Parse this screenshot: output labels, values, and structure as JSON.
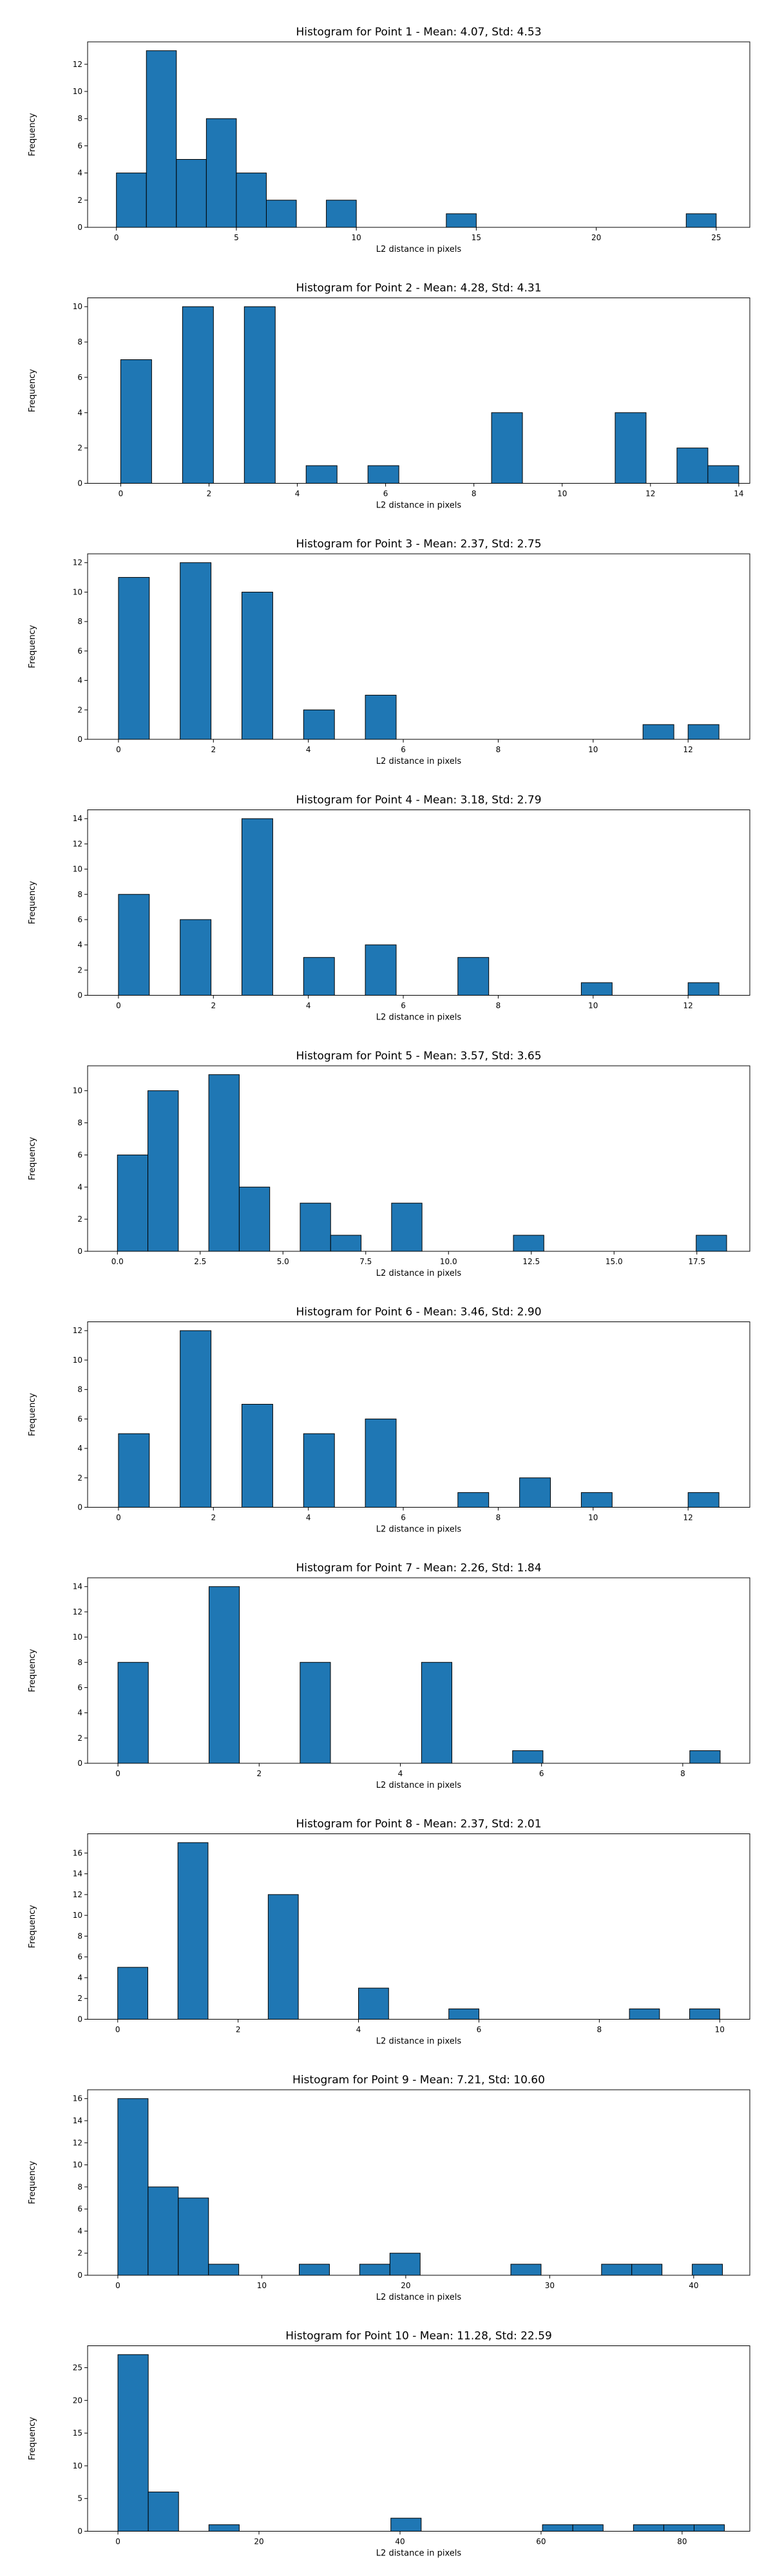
{
  "colors": {
    "bar": "#1f77b4",
    "edge": "#000000",
    "background": "#ffffff"
  },
  "chart_data": [
    {
      "type": "bar",
      "title": "Histogram for Point 1 - Mean: 4.07, Std: 4.53",
      "xlabel": "L2 distance in pixels",
      "ylabel": "Frequency",
      "xlim": [
        -1.2,
        26.4
      ],
      "ylim": [
        0,
        13.65
      ],
      "xticks": [
        0,
        5,
        10,
        15,
        20,
        25
      ],
      "xtick_labels": [
        "0",
        "5",
        "10",
        "15",
        "20",
        "25"
      ],
      "yticks": [
        0,
        2,
        4,
        6,
        8,
        10,
        12
      ],
      "bins": [
        {
          "x0": 0.0,
          "x1": 1.25,
          "count": 4
        },
        {
          "x0": 1.25,
          "x1": 2.5,
          "count": 13
        },
        {
          "x0": 2.5,
          "x1": 3.75,
          "count": 5
        },
        {
          "x0": 3.75,
          "x1": 5.0,
          "count": 8
        },
        {
          "x0": 5.0,
          "x1": 6.25,
          "count": 4
        },
        {
          "x0": 6.25,
          "x1": 7.5,
          "count": 2
        },
        {
          "x0": 8.75,
          "x1": 10.0,
          "count": 2
        },
        {
          "x0": 13.75,
          "x1": 15.0,
          "count": 1
        },
        {
          "x0": 23.75,
          "x1": 25.0,
          "count": 1
        }
      ]
    },
    {
      "type": "bar",
      "title": "Histogram for Point 2 - Mean: 4.28, Std: 4.31",
      "xlabel": "L2 distance in pixels",
      "ylabel": "Frequency",
      "xlim": [
        -0.75,
        14.25
      ],
      "ylim": [
        0,
        10.5
      ],
      "xticks": [
        0,
        2,
        4,
        6,
        8,
        10,
        12,
        14
      ],
      "xtick_labels": [
        "0",
        "2",
        "4",
        "6",
        "8",
        "10",
        "12",
        "14"
      ],
      "yticks": [
        0,
        2,
        4,
        6,
        8,
        10
      ],
      "bins": [
        {
          "x0": 0.0,
          "x1": 0.7,
          "count": 7
        },
        {
          "x0": 1.4,
          "x1": 2.1,
          "count": 10
        },
        {
          "x0": 2.8,
          "x1": 3.5,
          "count": 10
        },
        {
          "x0": 4.2,
          "x1": 4.9,
          "count": 1
        },
        {
          "x0": 5.6,
          "x1": 6.3,
          "count": 1
        },
        {
          "x0": 8.4,
          "x1": 9.1,
          "count": 4
        },
        {
          "x0": 11.2,
          "x1": 11.9,
          "count": 4
        },
        {
          "x0": 12.6,
          "x1": 13.3,
          "count": 2
        },
        {
          "x0": 13.3,
          "x1": 14.0,
          "count": 1
        }
      ]
    },
    {
      "type": "bar",
      "title": "Histogram for Point 3 - Mean: 2.37, Std: 2.75",
      "xlabel": "L2 distance in pixels",
      "ylabel": "Frequency",
      "xlim": [
        -0.65,
        13.3
      ],
      "ylim": [
        0,
        12.6
      ],
      "xticks": [
        0,
        2,
        4,
        6,
        8,
        10,
        12
      ],
      "xtick_labels": [
        "0",
        "2",
        "4",
        "6",
        "8",
        "10",
        "12"
      ],
      "yticks": [
        0,
        2,
        4,
        6,
        8,
        10,
        12
      ],
      "bins": [
        {
          "x0": 0.0,
          "x1": 0.65,
          "count": 11
        },
        {
          "x0": 1.3,
          "x1": 1.95,
          "count": 12
        },
        {
          "x0": 2.6,
          "x1": 3.25,
          "count": 10
        },
        {
          "x0": 3.9,
          "x1": 4.55,
          "count": 2
        },
        {
          "x0": 5.2,
          "x1": 5.85,
          "count": 3
        },
        {
          "x0": 11.05,
          "x1": 11.7,
          "count": 1
        },
        {
          "x0": 12.0,
          "x1": 12.65,
          "count": 1
        }
      ]
    },
    {
      "type": "bar",
      "title": "Histogram for Point 4 - Mean: 3.18, Std: 2.79",
      "xlabel": "L2 distance in pixels",
      "ylabel": "Frequency",
      "xlim": [
        -0.65,
        13.3
      ],
      "ylim": [
        0,
        14.7
      ],
      "xticks": [
        0,
        2,
        4,
        6,
        8,
        10,
        12
      ],
      "xtick_labels": [
        "0",
        "2",
        "4",
        "6",
        "8",
        "10",
        "12"
      ],
      "yticks": [
        0,
        2,
        4,
        6,
        8,
        10,
        12,
        14
      ],
      "bins": [
        {
          "x0": 0.0,
          "x1": 0.65,
          "count": 8
        },
        {
          "x0": 1.3,
          "x1": 1.95,
          "count": 6
        },
        {
          "x0": 2.6,
          "x1": 3.25,
          "count": 14
        },
        {
          "x0": 3.9,
          "x1": 4.55,
          "count": 3
        },
        {
          "x0": 5.2,
          "x1": 5.85,
          "count": 4
        },
        {
          "x0": 7.15,
          "x1": 7.8,
          "count": 3
        },
        {
          "x0": 9.75,
          "x1": 10.4,
          "count": 1
        },
        {
          "x0": 12.0,
          "x1": 12.65,
          "count": 1
        }
      ]
    },
    {
      "type": "bar",
      "title": "Histogram for Point 5 - Mean: 3.57, Std: 3.65",
      "xlabel": "L2 distance in pixels",
      "ylabel": "Frequency",
      "xlim": [
        -0.9,
        19.1
      ],
      "ylim": [
        0,
        11.55
      ],
      "xticks": [
        0,
        2.5,
        5,
        7.5,
        10,
        12.5,
        15,
        17.5
      ],
      "xtick_labels": [
        "0.0",
        "2.5",
        "5.0",
        "7.5",
        "10.0",
        "12.5",
        "15.0",
        "17.5"
      ],
      "yticks": [
        0,
        2,
        4,
        6,
        8,
        10
      ],
      "bins": [
        {
          "x0": 0.0,
          "x1": 0.92,
          "count": 6
        },
        {
          "x0": 0.92,
          "x1": 1.84,
          "count": 10
        },
        {
          "x0": 2.76,
          "x1": 3.68,
          "count": 11
        },
        {
          "x0": 3.68,
          "x1": 4.6,
          "count": 4
        },
        {
          "x0": 5.52,
          "x1": 6.44,
          "count": 3
        },
        {
          "x0": 6.44,
          "x1": 7.36,
          "count": 1
        },
        {
          "x0": 8.28,
          "x1": 9.2,
          "count": 3
        },
        {
          "x0": 11.96,
          "x1": 12.88,
          "count": 1
        },
        {
          "x0": 17.48,
          "x1": 18.4,
          "count": 1
        }
      ]
    },
    {
      "type": "bar",
      "title": "Histogram for Point 6 - Mean: 3.46, Std: 2.90",
      "xlabel": "L2 distance in pixels",
      "ylabel": "Frequency",
      "xlim": [
        -0.65,
        13.3
      ],
      "ylim": [
        0,
        12.6
      ],
      "xticks": [
        0,
        2,
        4,
        6,
        8,
        10,
        12
      ],
      "xtick_labels": [
        "0",
        "2",
        "4",
        "6",
        "8",
        "10",
        "12"
      ],
      "yticks": [
        0,
        2,
        4,
        6,
        8,
        10,
        12
      ],
      "bins": [
        {
          "x0": 0.0,
          "x1": 0.65,
          "count": 5
        },
        {
          "x0": 1.3,
          "x1": 1.95,
          "count": 12
        },
        {
          "x0": 2.6,
          "x1": 3.25,
          "count": 7
        },
        {
          "x0": 3.9,
          "x1": 4.55,
          "count": 5
        },
        {
          "x0": 5.2,
          "x1": 5.85,
          "count": 6
        },
        {
          "x0": 7.15,
          "x1": 7.8,
          "count": 1
        },
        {
          "x0": 8.45,
          "x1": 9.1,
          "count": 2
        },
        {
          "x0": 9.75,
          "x1": 10.4,
          "count": 1
        },
        {
          "x0": 12.0,
          "x1": 12.65,
          "count": 1
        }
      ]
    },
    {
      "type": "bar",
      "title": "Histogram for Point 7 - Mean: 2.26, Std: 1.84",
      "xlabel": "L2 distance in pixels",
      "ylabel": "Frequency",
      "xlim": [
        -0.43,
        8.95
      ],
      "ylim": [
        0,
        14.7
      ],
      "xticks": [
        0,
        2,
        4,
        6,
        8
      ],
      "xtick_labels": [
        "0",
        "2",
        "4",
        "6",
        "8"
      ],
      "yticks": [
        0,
        2,
        4,
        6,
        8,
        10,
        12,
        14
      ],
      "bins": [
        {
          "x0": 0.0,
          "x1": 0.43,
          "count": 8
        },
        {
          "x0": 1.29,
          "x1": 1.72,
          "count": 14
        },
        {
          "x0": 2.58,
          "x1": 3.01,
          "count": 8
        },
        {
          "x0": 4.3,
          "x1": 4.73,
          "count": 8
        },
        {
          "x0": 5.59,
          "x1": 6.02,
          "count": 1
        },
        {
          "x0": 8.1,
          "x1": 8.53,
          "count": 1
        }
      ]
    },
    {
      "type": "bar",
      "title": "Histogram for Point 8 - Mean: 2.37, Std: 2.01",
      "xlabel": "L2 distance in pixels",
      "ylabel": "Frequency",
      "xlim": [
        -0.5,
        10.5
      ],
      "ylim": [
        0,
        17.85
      ],
      "xticks": [
        0,
        2,
        4,
        6,
        8,
        10
      ],
      "xtick_labels": [
        "0",
        "2",
        "4",
        "6",
        "8",
        "10"
      ],
      "yticks": [
        0,
        2,
        4,
        6,
        8,
        10,
        12,
        14,
        16
      ],
      "bins": [
        {
          "x0": 0.0,
          "x1": 0.5,
          "count": 5
        },
        {
          "x0": 1.0,
          "x1": 1.5,
          "count": 17
        },
        {
          "x0": 2.5,
          "x1": 3.0,
          "count": 12
        },
        {
          "x0": 4.0,
          "x1": 4.5,
          "count": 3
        },
        {
          "x0": 5.5,
          "x1": 6.0,
          "count": 1
        },
        {
          "x0": 8.5,
          "x1": 9.0,
          "count": 1
        },
        {
          "x0": 9.5,
          "x1": 10.0,
          "count": 1
        }
      ]
    },
    {
      "type": "bar",
      "title": "Histogram for Point 9 - Mean: 7.21, Std: 10.60",
      "xlabel": "L2 distance in pixels",
      "ylabel": "Frequency",
      "xlim": [
        -2.1,
        43.9
      ],
      "ylim": [
        0,
        16.8
      ],
      "xticks": [
        0,
        10,
        20,
        30,
        40
      ],
      "xtick_labels": [
        "0",
        "10",
        "20",
        "30",
        "40"
      ],
      "yticks": [
        0,
        2,
        4,
        6,
        8,
        10,
        12,
        14,
        16
      ],
      "bins": [
        {
          "x0": 0.0,
          "x1": 2.1,
          "count": 16
        },
        {
          "x0": 2.1,
          "x1": 4.2,
          "count": 8
        },
        {
          "x0": 4.2,
          "x1": 6.3,
          "count": 7
        },
        {
          "x0": 6.3,
          "x1": 8.4,
          "count": 1
        },
        {
          "x0": 12.6,
          "x1": 14.7,
          "count": 1
        },
        {
          "x0": 16.8,
          "x1": 18.9,
          "count": 1
        },
        {
          "x0": 18.9,
          "x1": 21.0,
          "count": 2
        },
        {
          "x0": 27.3,
          "x1": 29.4,
          "count": 1
        },
        {
          "x0": 33.6,
          "x1": 35.7,
          "count": 1
        },
        {
          "x0": 35.7,
          "x1": 37.8,
          "count": 1
        },
        {
          "x0": 39.9,
          "x1": 42.0,
          "count": 1
        }
      ]
    },
    {
      "type": "bar",
      "title": "Histogram for Point 10 - Mean: 11.28, Std: 22.59",
      "xlabel": "L2 distance in pixels",
      "ylabel": "Frequency",
      "xlim": [
        -4.3,
        89.6
      ],
      "ylim": [
        0,
        28.35
      ],
      "xticks": [
        0,
        20,
        40,
        60,
        80
      ],
      "xtick_labels": [
        "0",
        "20",
        "40",
        "60",
        "80"
      ],
      "yticks": [
        0,
        5,
        10,
        15,
        20,
        25
      ],
      "bins": [
        {
          "x0": 0.0,
          "x1": 4.3,
          "count": 27
        },
        {
          "x0": 4.3,
          "x1": 8.6,
          "count": 6
        },
        {
          "x0": 12.9,
          "x1": 17.2,
          "count": 1
        },
        {
          "x0": 38.7,
          "x1": 43.0,
          "count": 2
        },
        {
          "x0": 60.2,
          "x1": 64.5,
          "count": 1
        },
        {
          "x0": 64.5,
          "x1": 68.8,
          "count": 1
        },
        {
          "x0": 73.1,
          "x1": 77.4,
          "count": 1
        },
        {
          "x0": 77.4,
          "x1": 81.7,
          "count": 1
        },
        {
          "x0": 81.7,
          "x1": 86.0,
          "count": 1
        }
      ]
    }
  ]
}
